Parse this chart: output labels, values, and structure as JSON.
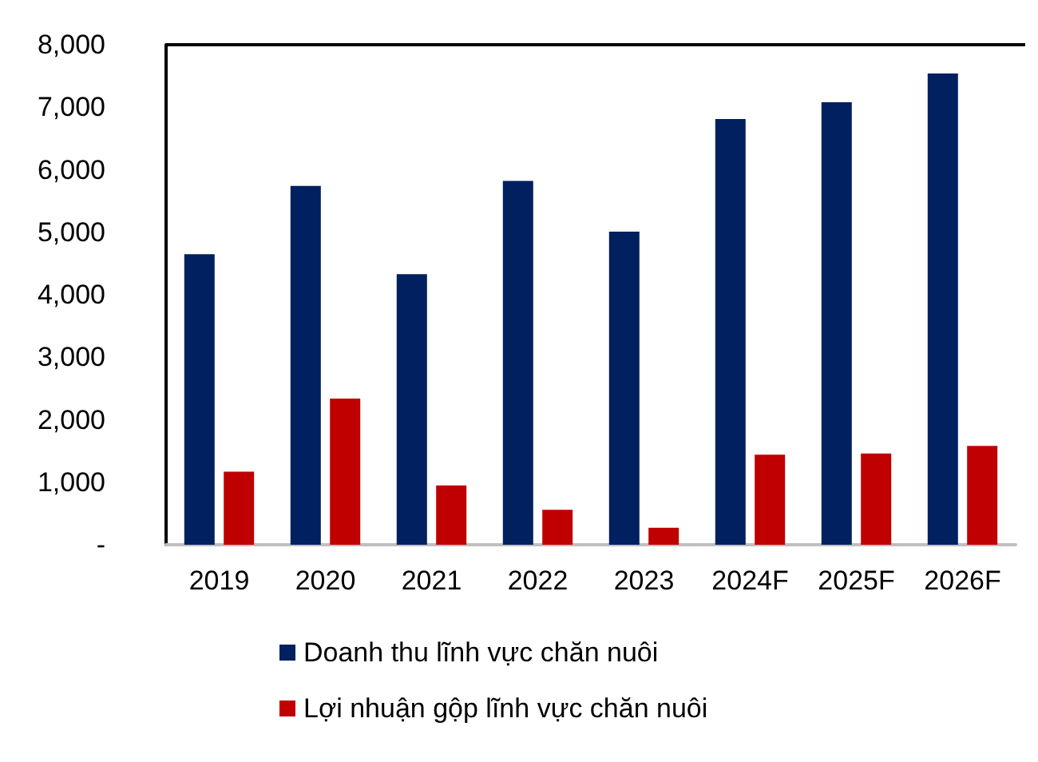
{
  "chart_data": {
    "type": "bar",
    "categories": [
      "2019",
      "2020",
      "2021",
      "2022",
      "2023",
      "2024F",
      "2025F",
      "2026F"
    ],
    "series": [
      {
        "name": "Doanh thu lĩnh vực chăn nuôi",
        "color": "#002060",
        "values": [
          4650,
          5740,
          4330,
          5820,
          5010,
          6810,
          7080,
          7540
        ]
      },
      {
        "name": "Lợi nhuận gộp lĩnh vực chăn nuôi",
        "color": "#c00000",
        "values": [
          1170,
          2340,
          950,
          560,
          270,
          1440,
          1460,
          1580
        ]
      }
    ],
    "ylim": [
      0,
      8000
    ],
    "yticks": [
      {
        "value": 0,
        "label": "-"
      },
      {
        "value": 1000,
        "label": "1,000"
      },
      {
        "value": 2000,
        "label": "2,000"
      },
      {
        "value": 3000,
        "label": "3,000"
      },
      {
        "value": 4000,
        "label": "4,000"
      },
      {
        "value": 5000,
        "label": "5,000"
      },
      {
        "value": 6000,
        "label": "6,000"
      },
      {
        "value": 7000,
        "label": "7,000"
      },
      {
        "value": 8000,
        "label": "8,000"
      }
    ],
    "grid": false,
    "legend": "bottom"
  }
}
